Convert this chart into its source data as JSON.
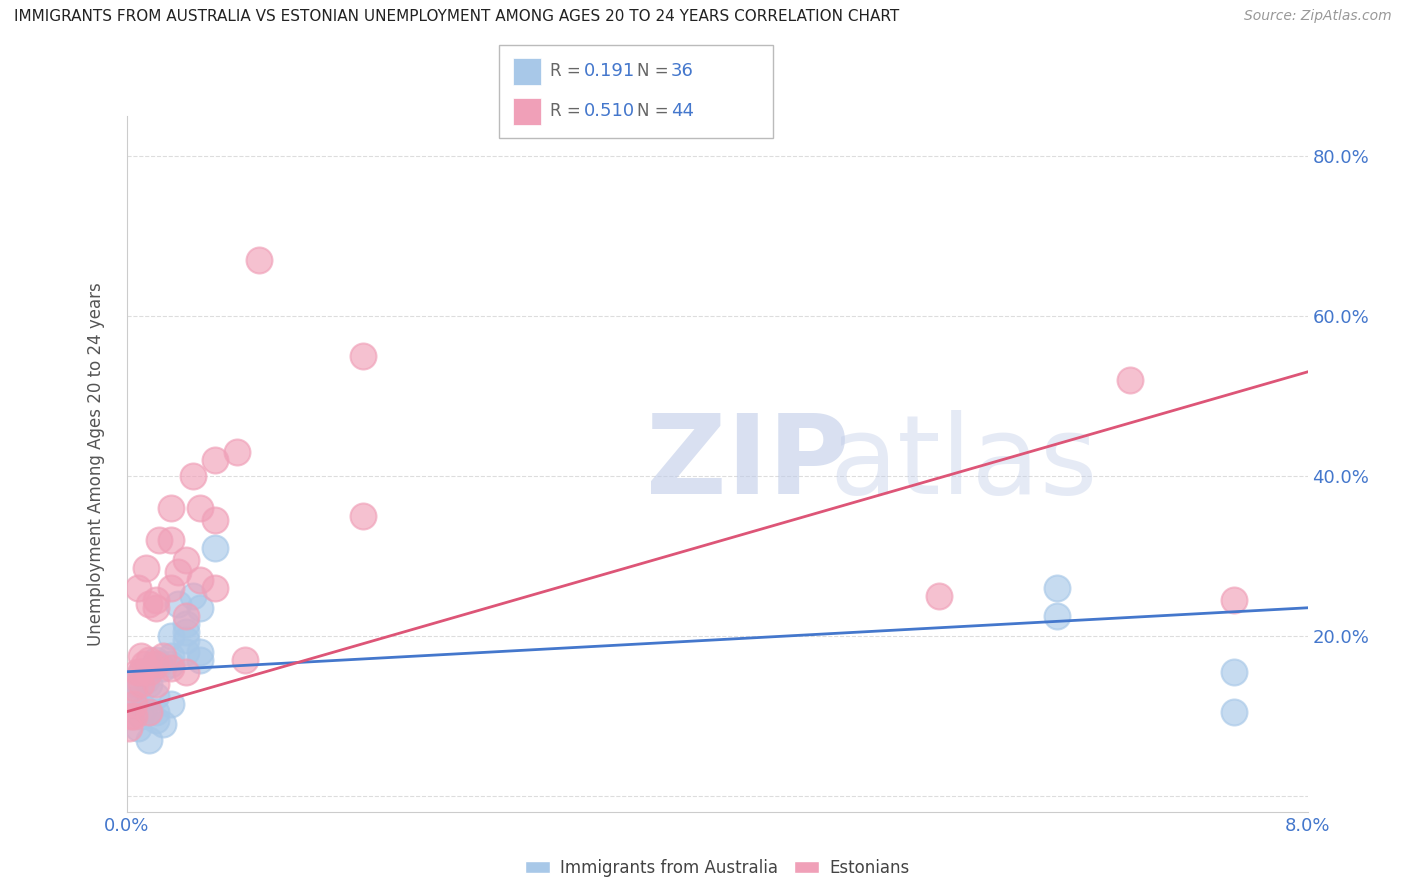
{
  "title": "IMMIGRANTS FROM AUSTRALIA VS ESTONIAN UNEMPLOYMENT AMONG AGES 20 TO 24 YEARS CORRELATION CHART",
  "source": "Source: ZipAtlas.com",
  "ylabel": "Unemployment Among Ages 20 to 24 years",
  "xlim": [
    0.0,
    0.08
  ],
  "ylim": [
    -0.02,
    0.85
  ],
  "yticks": [
    0.0,
    0.2,
    0.4,
    0.6,
    0.8
  ],
  "ytick_labels": [
    "",
    "20.0%",
    "40.0%",
    "60.0%",
    "80.0%"
  ],
  "xticks": [
    0.0,
    0.08
  ],
  "xtick_labels": [
    "0.0%",
    "8.0%"
  ],
  "color_blue": "#a8c8e8",
  "color_pink": "#f0a0b8",
  "color_line_blue": "#4477cc",
  "color_line_pink": "#dd5577",
  "color_grid": "#dddddd",
  "color_text_blue": "#4477cc",
  "aus_x": [
    0.0003,
    0.0005,
    0.0006,
    0.0008,
    0.001,
    0.001,
    0.0012,
    0.0013,
    0.0015,
    0.0015,
    0.0017,
    0.002,
    0.002,
    0.002,
    0.002,
    0.0022,
    0.0025,
    0.0025,
    0.003,
    0.003,
    0.003,
    0.003,
    0.0035,
    0.004,
    0.004,
    0.004,
    0.004,
    0.0045,
    0.005,
    0.005,
    0.005,
    0.006,
    0.063,
    0.063,
    0.075,
    0.075
  ],
  "aus_y": [
    0.13,
    0.12,
    0.14,
    0.085,
    0.1,
    0.155,
    0.11,
    0.145,
    0.07,
    0.14,
    0.16,
    0.105,
    0.095,
    0.125,
    0.17,
    0.165,
    0.09,
    0.16,
    0.115,
    0.165,
    0.175,
    0.2,
    0.24,
    0.18,
    0.195,
    0.205,
    0.215,
    0.25,
    0.17,
    0.18,
    0.235,
    0.31,
    0.225,
    0.26,
    0.155,
    0.105
  ],
  "est_x": [
    0.0002,
    0.0003,
    0.0005,
    0.0005,
    0.0005,
    0.0007,
    0.0008,
    0.001,
    0.001,
    0.001,
    0.0012,
    0.0013,
    0.0015,
    0.0015,
    0.0015,
    0.0015,
    0.002,
    0.002,
    0.002,
    0.002,
    0.0022,
    0.0025,
    0.003,
    0.003,
    0.003,
    0.003,
    0.0035,
    0.004,
    0.004,
    0.004,
    0.0045,
    0.005,
    0.005,
    0.006,
    0.006,
    0.006,
    0.0075,
    0.008,
    0.009,
    0.016,
    0.016,
    0.055,
    0.068,
    0.075
  ],
  "est_y": [
    0.085,
    0.1,
    0.1,
    0.115,
    0.135,
    0.155,
    0.26,
    0.14,
    0.155,
    0.175,
    0.165,
    0.285,
    0.105,
    0.155,
    0.17,
    0.24,
    0.14,
    0.165,
    0.235,
    0.245,
    0.32,
    0.175,
    0.16,
    0.26,
    0.32,
    0.36,
    0.28,
    0.155,
    0.225,
    0.295,
    0.4,
    0.27,
    0.36,
    0.26,
    0.345,
    0.42,
    0.43,
    0.17,
    0.67,
    0.35,
    0.55,
    0.25,
    0.52,
    0.245
  ],
  "blue_trend_x": [
    0.0,
    0.08
  ],
  "blue_trend_y": [
    0.155,
    0.235
  ],
  "pink_trend_x": [
    0.0,
    0.08
  ],
  "pink_trend_y": [
    0.105,
    0.53
  ]
}
